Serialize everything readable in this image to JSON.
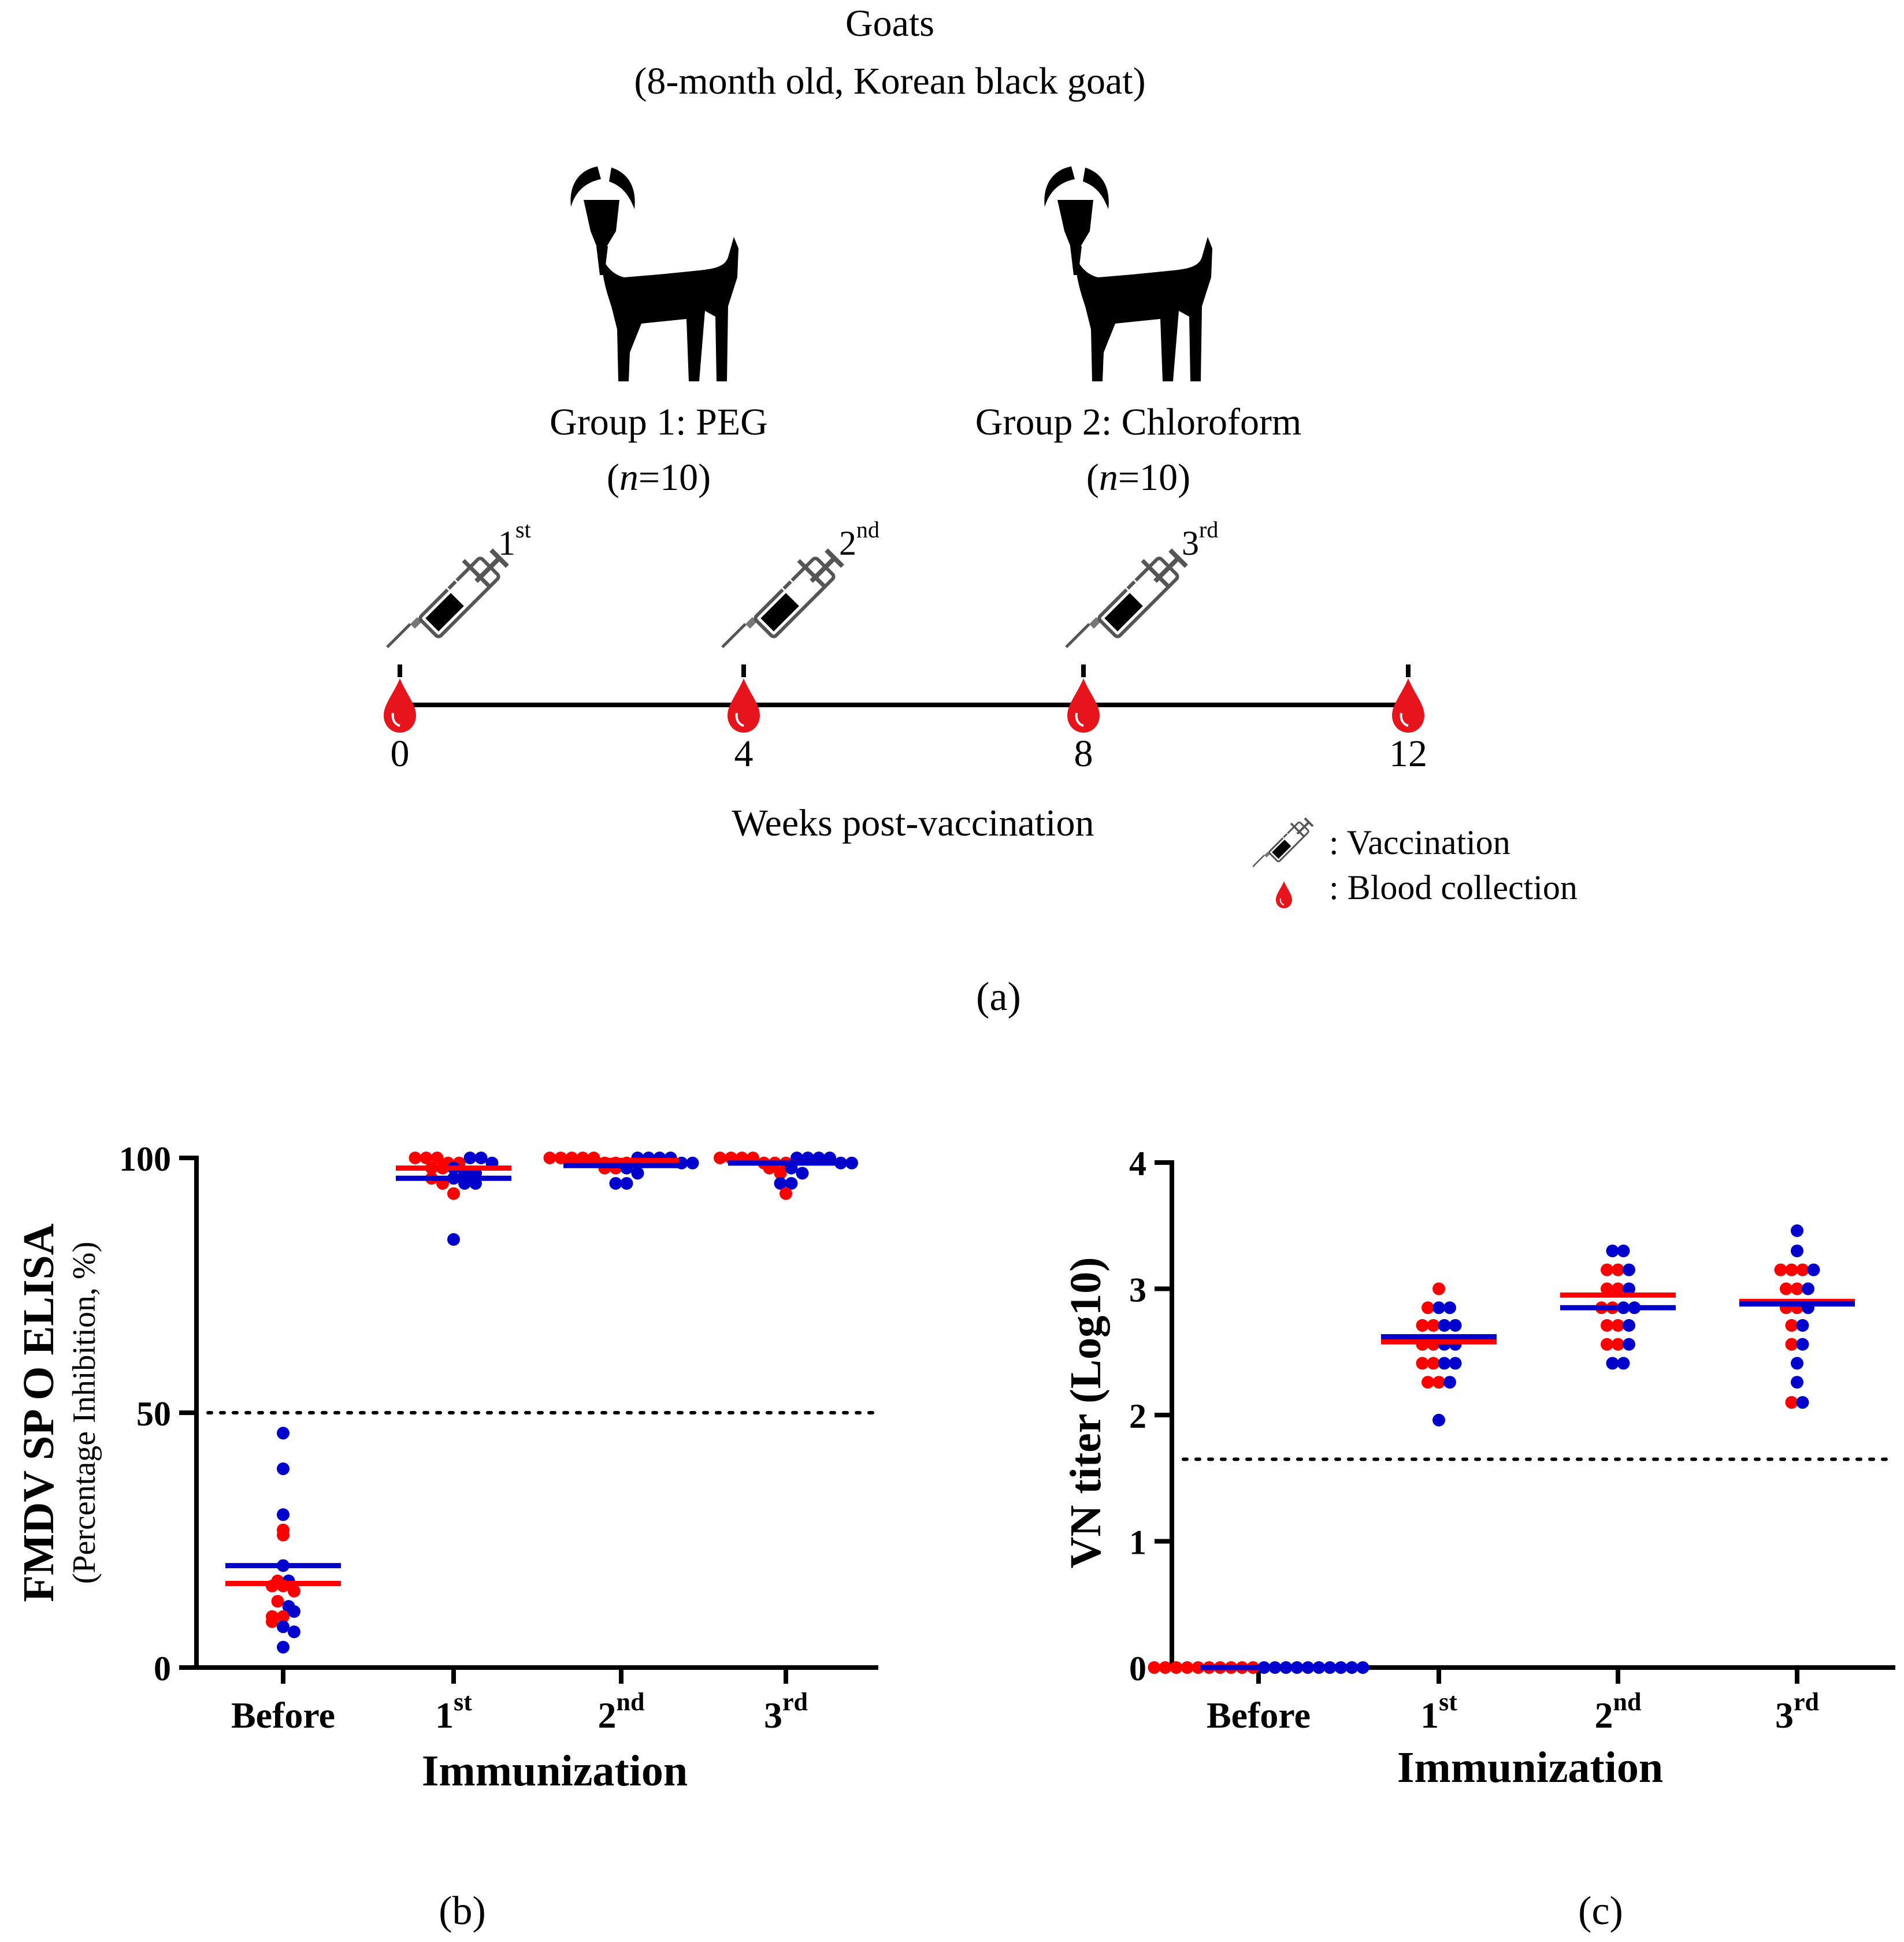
{
  "panel_a": {
    "title": "Goats",
    "subtitle": "(8-month old, Korean black goat)",
    "groups": [
      {
        "label": "Group  1: PEG",
        "n_var": "n",
        "n_value": "=10"
      },
      {
        "label": "Group  2: Chloroform",
        "n_var": "n",
        "n_value": "=10"
      }
    ],
    "doses": [
      {
        "num": "1",
        "sup": "st"
      },
      {
        "num": "2",
        "sup": "nd"
      },
      {
        "num": "3",
        "sup": "rd"
      }
    ],
    "timeline_weeks": [
      "0",
      "4",
      "8",
      "12"
    ],
    "timeline_label": "Weeks post-vaccination",
    "legend": [
      {
        "icon": "syringe-icon",
        "label": ": Vaccination"
      },
      {
        "icon": "blood-drop-icon",
        "label": ": Blood collection"
      }
    ],
    "panel_label": "(a)"
  },
  "colors": {
    "peg": "#ff0000",
    "chloroform": "#0000cc",
    "axis": "#000000",
    "drop": "#e8141c"
  },
  "chart_data": [
    {
      "type": "scatter",
      "panel_label": "(b)",
      "ylabel": "FMDV SP O ELISA",
      "ylabel_sub": "(Percentage Inhibition, %)",
      "xlabel": "Immunization",
      "categories": [
        {
          "main": "Before",
          "sup": ""
        },
        {
          "main": "1",
          "sup": "st"
        },
        {
          "main": "2",
          "sup": "nd"
        },
        {
          "main": "3",
          "sup": "rd"
        }
      ],
      "ylim": [
        0,
        100
      ],
      "yticks": [
        0,
        50,
        100
      ],
      "threshold": 50,
      "series": [
        {
          "name": "Group 1: PEG",
          "color": "#ff0000",
          "means": [
            16.5,
            98.0,
            99.5,
            99.0
          ],
          "points": [
            [
              27,
              26,
              17,
              16,
              16,
              15,
              13,
              10,
              10,
              9
            ],
            [
              100,
              100,
              100,
              99,
              99,
              98,
              98,
              96,
              95,
              93
            ],
            [
              100,
              100,
              100,
              100,
              100,
              99,
              99,
              99,
              98,
              98
            ],
            [
              100,
              100,
              100,
              100,
              99,
              99,
              99,
              98,
              97,
              93
            ]
          ]
        },
        {
          "name": "Group 2: Chloroform",
          "color": "#0000cc",
          "means": [
            20.0,
            96.0,
            98.5,
            99.0
          ],
          "points": [
            [
              46,
              39,
              30,
              20,
              17,
              12,
              11,
              8,
              7,
              4
            ],
            [
              100,
              100,
              99,
              98,
              97,
              97,
              96,
              95,
              95,
              84
            ],
            [
              100,
              100,
              100,
              100,
              99,
              99,
              98,
              97,
              95,
              95
            ],
            [
              100,
              100,
              100,
              100,
              99,
              99,
              98,
              97,
              95,
              95
            ]
          ]
        }
      ]
    },
    {
      "type": "scatter",
      "panel_label": "(c)",
      "ylabel": "VN titer (Log10)",
      "xlabel": "Immunization",
      "categories": [
        {
          "main": "Before",
          "sup": ""
        },
        {
          "main": "1",
          "sup": "st"
        },
        {
          "main": "2",
          "sup": "nd"
        },
        {
          "main": "3",
          "sup": "rd"
        }
      ],
      "ylim": [
        0,
        4
      ],
      "yticks": [
        0,
        1,
        2,
        3,
        4
      ],
      "threshold": 1.65,
      "series": [
        {
          "name": "Group 1: PEG",
          "color": "#ff0000",
          "means": [
            0,
            2.58,
            2.95,
            2.9
          ],
          "points": [
            [
              0,
              0,
              0,
              0,
              0,
              0,
              0,
              0,
              0,
              0
            ],
            [
              3.0,
              2.85,
              2.71,
              2.71,
              2.56,
              2.56,
              2.41,
              2.41,
              2.26,
              2.26
            ],
            [
              3.15,
              3.15,
              3.0,
              3.0,
              2.85,
              2.85,
              2.71,
              2.71,
              2.56,
              2.56
            ],
            [
              3.15,
              3.15,
              3.15,
              3.0,
              3.0,
              2.85,
              2.85,
              2.71,
              2.56,
              2.1
            ]
          ]
        },
        {
          "name": "Group 2: Chloroform",
          "color": "#0000cc",
          "means": [
            0,
            2.62,
            2.85,
            2.88
          ],
          "points": [
            [
              0,
              0,
              0,
              0,
              0,
              0,
              0,
              0,
              0,
              0
            ],
            [
              2.85,
              2.85,
              2.71,
              2.71,
              2.56,
              2.56,
              2.41,
              2.41,
              2.26,
              1.96
            ],
            [
              3.3,
              3.3,
              3.15,
              3.0,
              2.85,
              2.85,
              2.71,
              2.56,
              2.41,
              2.41
            ],
            [
              3.46,
              3.3,
              3.15,
              3.0,
              2.85,
              2.71,
              2.56,
              2.41,
              2.26,
              2.1
            ]
          ]
        }
      ]
    }
  ]
}
